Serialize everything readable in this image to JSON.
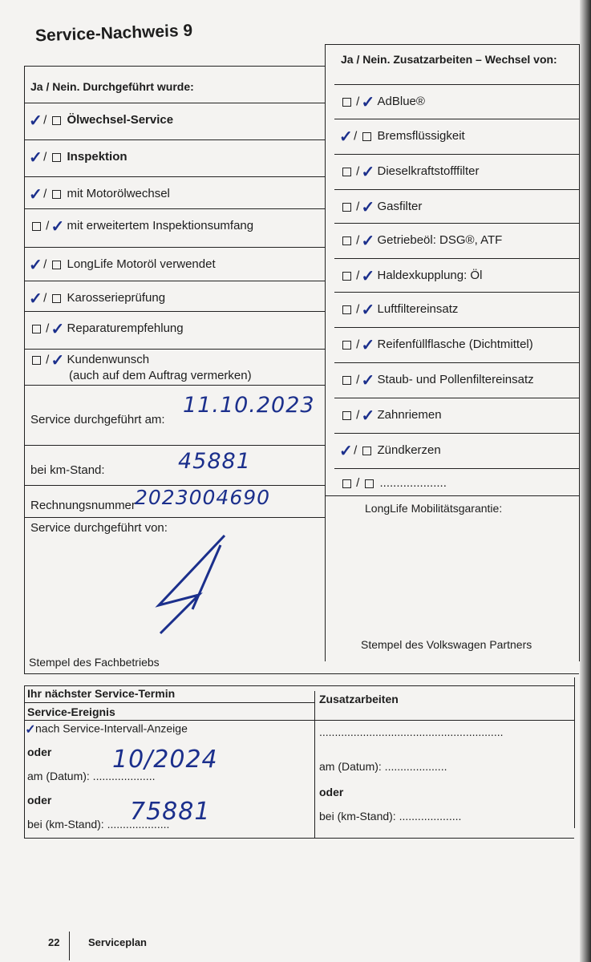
{
  "title": "Service-Nachweis 9",
  "left": {
    "header": "Ja / Nein. Durchgeführt wurde:",
    "items": [
      {
        "label": "Ölwechsel-Service",
        "bold": true,
        "checked": "ja"
      },
      {
        "label": "Inspektion",
        "bold": true,
        "checked": "ja"
      },
      {
        "label": "mit Motorölwechsel",
        "checked": "ja"
      },
      {
        "label": "mit erweitertem Inspektionsumfang",
        "checked": "nein"
      },
      {
        "label": "LongLife Motoröl verwendet",
        "checked": "ja"
      },
      {
        "label": "Karosserieprüfung",
        "checked": "ja"
      },
      {
        "label": "Reparaturempfehlung",
        "checked": "nein"
      },
      {
        "label": "Kundenwunsch",
        "sub": "(auch auf dem Auftrag vermerken)",
        "checked": "nein"
      }
    ],
    "service_date_label": "Service durchgeführt am:",
    "service_date_value": "11.10.2023",
    "km_label": "bei km-Stand:",
    "km_value": "45881",
    "invoice_label": "Rechnungsnummer",
    "invoice_value": "2023004690",
    "performed_by_label": "Service durchgeführt von:",
    "stamp_label": "Stempel des Fachbetriebs"
  },
  "right": {
    "header": "Ja / Nein. Zusatzarbeiten – Wechsel von:",
    "items": [
      {
        "label": "AdBlue®",
        "checked": "nein"
      },
      {
        "label": "Bremsflüssigkeit",
        "checked": "ja"
      },
      {
        "label": "Dieselkraftstofffilter",
        "checked": "nein"
      },
      {
        "label": "Gasfilter",
        "checked": "nein"
      },
      {
        "label": "Getriebeöl: DSG®, ATF",
        "checked": "nein"
      },
      {
        "label": "Haldexkupplung: Öl",
        "checked": "nein"
      },
      {
        "label": "Luftfiltereinsatz",
        "checked": "nein"
      },
      {
        "label": "Reifenfüllflasche (Dichtmittel)",
        "checked": "nein"
      },
      {
        "label": "Staub- und Pollenfiltereinsatz",
        "checked": "nein"
      },
      {
        "label": "Zahnriemen",
        "checked": "nein"
      },
      {
        "label": "Zündkerzen",
        "checked": "ja"
      },
      {
        "label": "....................",
        "checked": "none"
      }
    ],
    "guarantee_label": "LongLife Mobilitätsgarantie:",
    "stamp_label": "Stempel des Volkswagen Partners"
  },
  "next": {
    "header": "Ihr nächster Service-Termin",
    "event_header": "Service-Ereignis",
    "extra_header": "Zusatzarbeiten",
    "interval_label": "nach Service-Intervall-Anzeige",
    "interval_checked": true,
    "or1": "oder",
    "date_label": "am (Datum): ....................",
    "date_value": "10/2024",
    "or2": "oder",
    "km_label": "bei (km-Stand): ....................",
    "km_value": "75881",
    "extra_line": "...........................................................",
    "extra_date_label": "am (Datum): ....................",
    "extra_or": "oder",
    "extra_km_label": "bei (km-Stand): ...................."
  },
  "footer": {
    "page_number": "22",
    "section": "Serviceplan"
  }
}
